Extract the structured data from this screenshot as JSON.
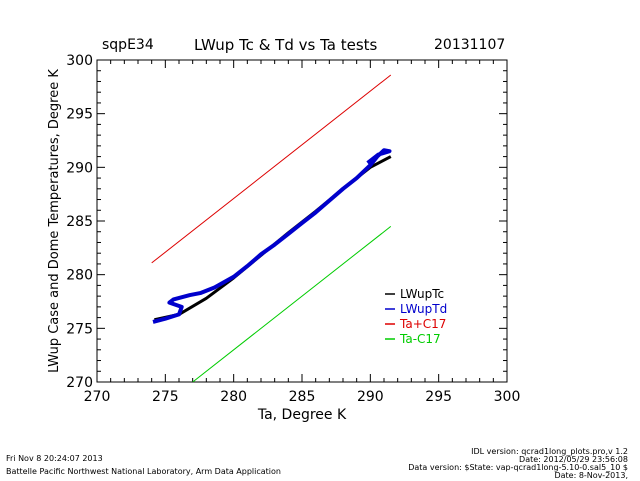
{
  "header": {
    "site": "sqpE34",
    "title": "LWup Tc & Td vs Ta tests",
    "date": "20131107"
  },
  "footer": {
    "left": [
      "Fri Nov  8 20:24:07 2013",
      "Battelle Pacific Northwest National Laboratory, Arm Data Application"
    ],
    "right": [
      "IDL version: qcrad1long_plots.pro,v 1.2",
      "Date: 2012/05/29 23:56:08",
      "Data version: $State: vap-qcrad1long-5.10-0.sal5_10 $",
      "Date: 8-Nov-2013,"
    ]
  },
  "chart_data": {
    "type": "line",
    "title": "LWup Tc & Td vs Ta tests",
    "xlabel": "Ta, Degree K",
    "ylabel": "LWup Case and Dome Temperatures, Degree K",
    "xlim": [
      270,
      300
    ],
    "ylim": [
      270,
      300
    ],
    "xticks": [
      270,
      275,
      280,
      285,
      290,
      295,
      300
    ],
    "yticks": [
      270,
      275,
      280,
      285,
      290,
      295,
      300
    ],
    "legend_position": "bottom-right",
    "series": [
      {
        "name": "LWupTc",
        "color": "#000000",
        "x": [
          274.2,
          276.0,
          278.0,
          280.0,
          282.0,
          284.0,
          286.0,
          288.0,
          290.0,
          291.5
        ],
        "y": [
          275.8,
          276.3,
          277.8,
          279.7,
          281.8,
          283.9,
          285.9,
          288.0,
          290.0,
          291.0
        ]
      },
      {
        "name": "LWupTd",
        "color": "#0000cc",
        "x": [
          274.1,
          275.0,
          276.0,
          276.2,
          275.3,
          275.6,
          276.8,
          277.6,
          278.6,
          280.0,
          281.0,
          282.0,
          283.0,
          284.0,
          285.0,
          286.0,
          287.0,
          288.0,
          289.0,
          290.0,
          290.5,
          291.0,
          291.4,
          290.6,
          289.8
        ],
        "y": [
          275.6,
          275.9,
          276.3,
          277.0,
          277.4,
          277.7,
          278.1,
          278.3,
          278.8,
          279.8,
          280.8,
          281.9,
          282.8,
          283.8,
          284.8,
          285.8,
          286.9,
          288.0,
          289.0,
          290.2,
          291.0,
          291.6,
          291.5,
          291.2,
          290.4
        ]
      },
      {
        "name": "Ta+C17",
        "color": "#dd0000",
        "x": [
          274.0,
          291.5
        ],
        "y": [
          281.1,
          298.6
        ]
      },
      {
        "name": "Ta-C17",
        "color": "#00cc00",
        "x": [
          277.0,
          291.5
        ],
        "y": [
          270.0,
          284.5
        ]
      }
    ]
  }
}
